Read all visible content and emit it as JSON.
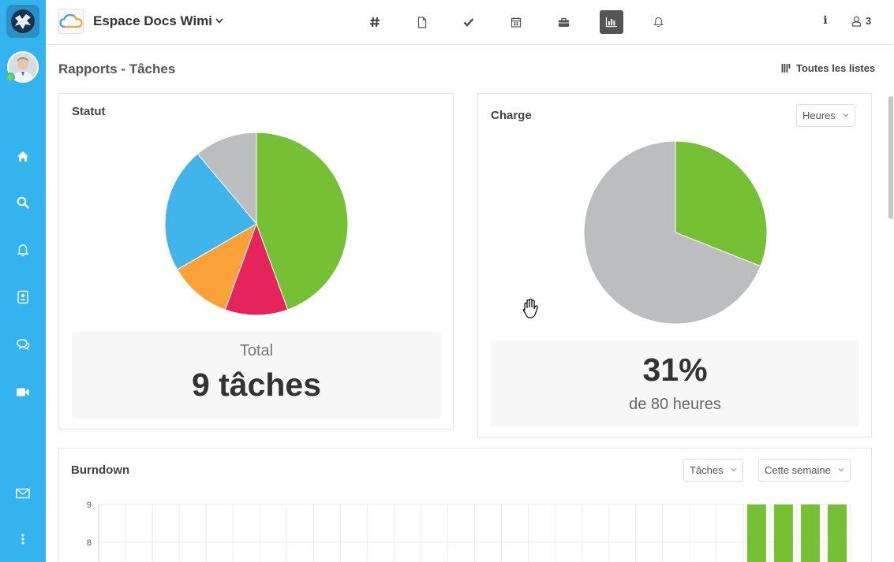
{
  "workspace": {
    "name": "Espace Docs Wimi"
  },
  "header": {
    "nav": [
      {
        "name": "channels-tab",
        "icon": "hash-icon",
        "active": false
      },
      {
        "name": "documents-tab",
        "icon": "document-icon",
        "active": false
      },
      {
        "name": "tasks-tab",
        "icon": "check-icon",
        "active": false
      },
      {
        "name": "calendar-tab",
        "icon": "calendar-icon",
        "active": false
      },
      {
        "name": "projects-tab",
        "icon": "briefcase-icon",
        "active": false
      },
      {
        "name": "reports-tab",
        "icon": "bar-chart-icon",
        "active": true
      },
      {
        "name": "notifications-tab",
        "icon": "bell-icon",
        "active": false
      }
    ],
    "members_count": "3"
  },
  "sidebar": {
    "items": [
      "home-icon",
      "search-icon",
      "bell-icon",
      "contacts-icon",
      "chat-icon",
      "video-icon",
      "mail-icon",
      "more-icon"
    ],
    "presence": "online"
  },
  "page": {
    "title": "Rapports - Tâches",
    "all_lists_label": "Toutes les listes"
  },
  "statut": {
    "title": "Statut",
    "total_label": "Total",
    "total_value": "9 tâches"
  },
  "charge": {
    "title": "Charge",
    "unit_select": "Heures",
    "percent": "31%",
    "subtitle": "de 80 heures"
  },
  "burndown": {
    "title": "Burndown",
    "type_select": "Tâches",
    "period_select": "Cette semaine"
  },
  "colors": {
    "sidebar": "#34b4ef",
    "green": "#76c035",
    "blue": "#3fb5ec",
    "orange": "#fba13a",
    "red": "#e5245c",
    "gray": "#bcbdbf"
  },
  "chart_data": [
    {
      "type": "pie",
      "title": "Statut",
      "values": [
        4,
        1,
        1,
        2,
        1
      ],
      "colors": [
        "#76c035",
        "#e5245c",
        "#fba13a",
        "#3fb5ec",
        "#bcbdbf"
      ]
    },
    {
      "type": "pie",
      "title": "Charge",
      "values": [
        31,
        69
      ],
      "colors": [
        "#76c035",
        "#bcbdbf"
      ]
    },
    {
      "type": "bar",
      "title": "Burndown",
      "yticks": [
        8,
        9
      ],
      "values": [
        9,
        9,
        9,
        9
      ],
      "color": "#76c035"
    }
  ]
}
